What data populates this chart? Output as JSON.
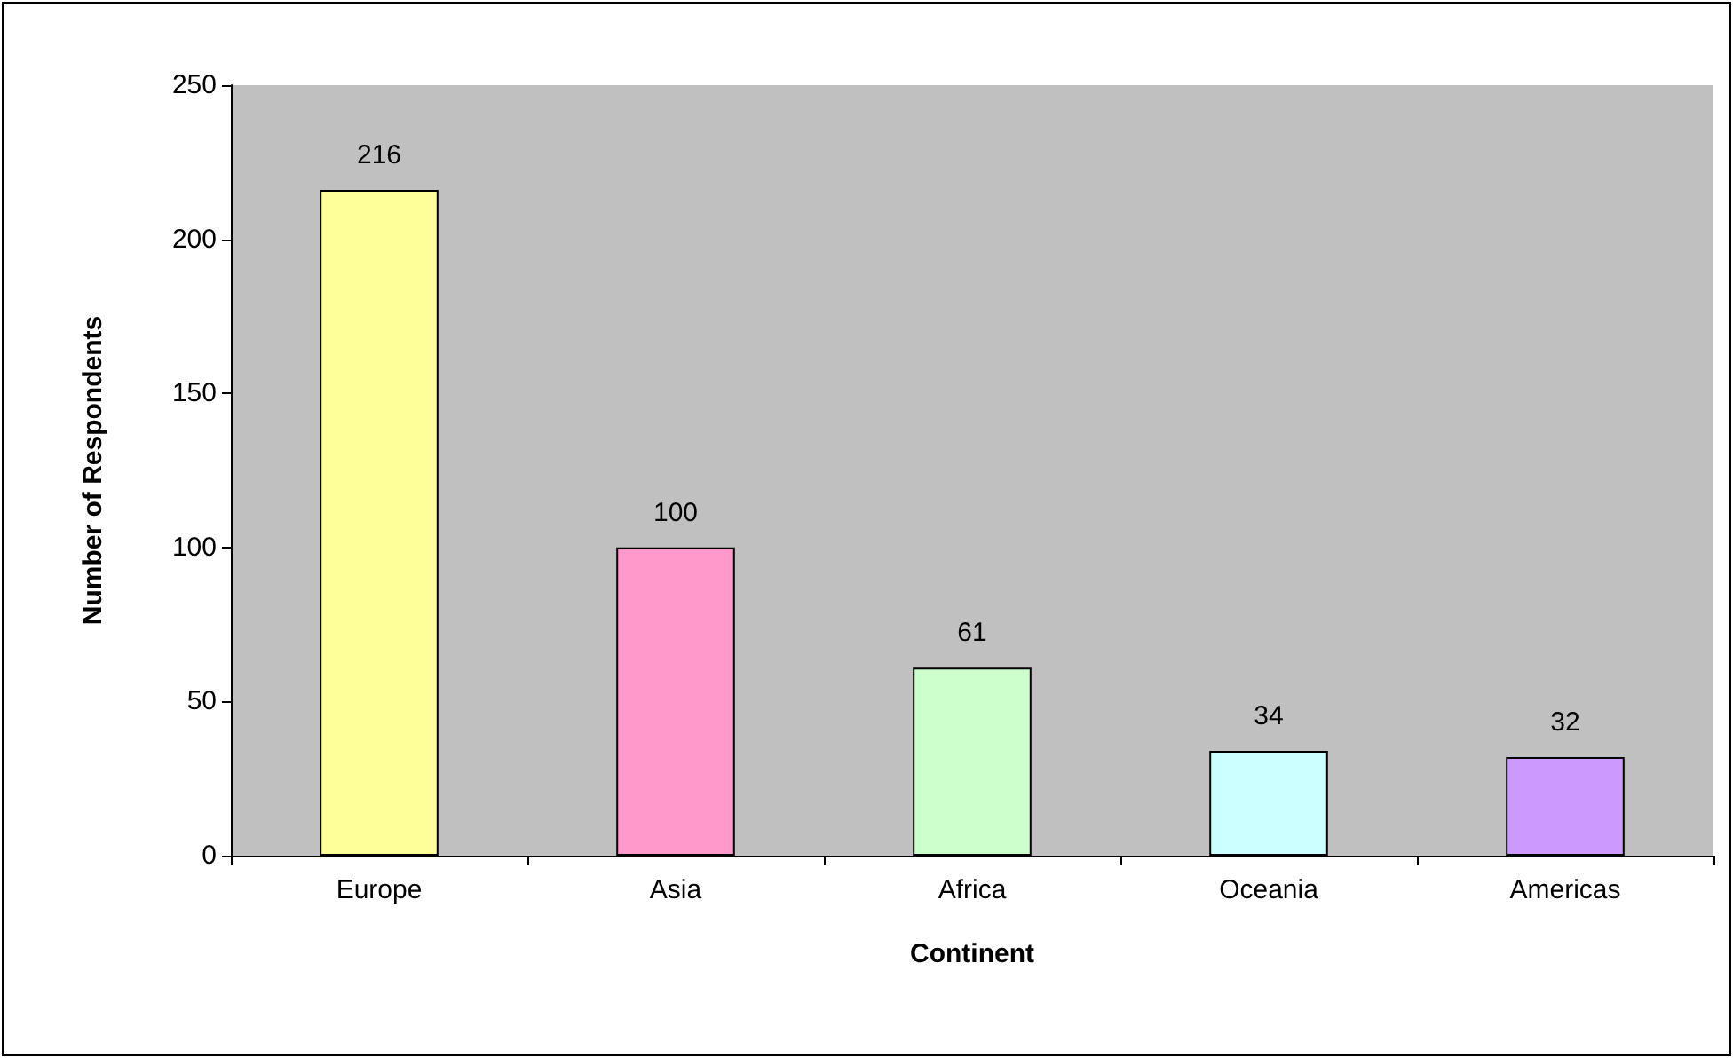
{
  "chart_data": {
    "type": "bar",
    "xlabel": "Continent",
    "ylabel": "Number of Respondents",
    "categories": [
      "Europe",
      "Asia",
      "Africa",
      "Oceania",
      "Americas"
    ],
    "values": [
      216,
      100,
      61,
      34,
      32
    ],
    "colors": [
      "#ffff99",
      "#ff99cc",
      "#ccffcc",
      "#ccffff",
      "#cc99ff"
    ],
    "ylim": [
      0,
      250
    ],
    "yticks": [
      0,
      50,
      100,
      150,
      200,
      250
    ],
    "grid": false,
    "data_labels": true
  }
}
